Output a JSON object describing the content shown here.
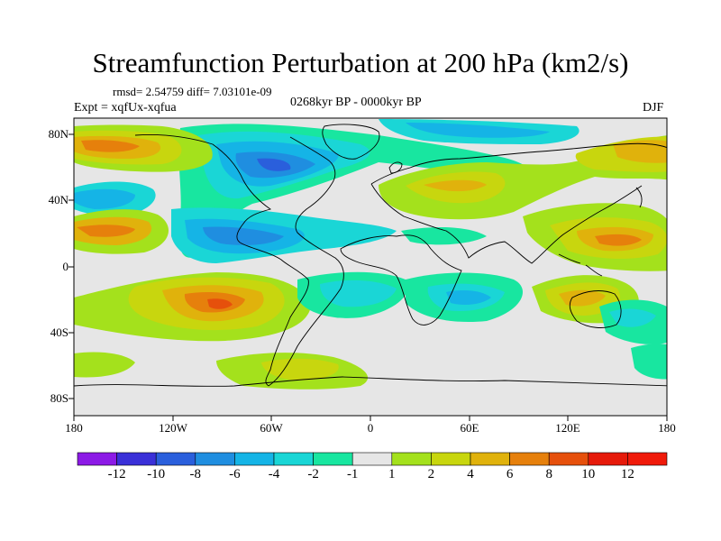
{
  "title": "Streamfunction Perturbation at 200 hPa (km2/s)",
  "stats": "rmsd= 2.54759 diff= 7.03101e-09",
  "experiment": "Expt = xqfUx-xqfua",
  "period": "0268kyr BP - 0000kyr BP",
  "season": "DJF",
  "axes": {
    "y_ticks": [
      "80N",
      "40N",
      "0",
      "40S",
      "80S"
    ],
    "x_ticks": [
      "180",
      "120W",
      "60W",
      "0",
      "60E",
      "120E",
      "180"
    ]
  },
  "colorbar": {
    "labels": [
      "-12",
      "-10",
      "-8",
      "-6",
      "-4",
      "-2",
      "-1",
      "1",
      "2",
      "4",
      "6",
      "8",
      "10",
      "12"
    ],
    "colors": [
      "#8c1ae6",
      "#3a30d8",
      "#2a5fdc",
      "#1f8ee0",
      "#15b4e6",
      "#1ad6d6",
      "#18e6a0",
      "#e6e6e6",
      "#a4e11c",
      "#c8d60e",
      "#e0b20c",
      "#e6800c",
      "#e6500c",
      "#e61a0a",
      "#f01a0a"
    ]
  },
  "colors": {
    "neutral": "#e6e6e6",
    "coast": "#000000"
  }
}
